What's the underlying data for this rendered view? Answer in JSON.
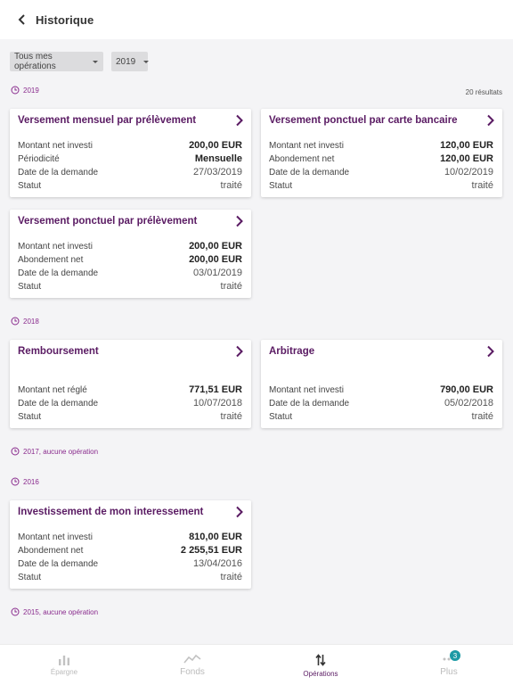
{
  "header": {
    "title": "Historique"
  },
  "filters": {
    "operations": "Tous mes opérations",
    "year": "2019"
  },
  "results_count": "20 résultats",
  "groups": [
    {
      "label": "2019"
    },
    {
      "label": "2018"
    },
    {
      "label": "2017, aucune opération"
    },
    {
      "label": "2016"
    },
    {
      "label": "2015, aucune opération"
    }
  ],
  "cards": [
    {
      "title": "Versement mensuel par prélèvement",
      "rows": [
        {
          "label": "Montant net investi",
          "value": "200,00 EUR"
        },
        {
          "label": "Périodicité",
          "value": "Mensuelle"
        },
        {
          "label": "Date de la demande",
          "value": "27/03/2019"
        },
        {
          "label": "Statut",
          "value": "traité"
        }
      ]
    },
    {
      "title": "Versement ponctuel par carte bancaire",
      "rows": [
        {
          "label": "Montant net investi",
          "value": "120,00 EUR"
        },
        {
          "label": "Abondement net",
          "value": "120,00 EUR"
        },
        {
          "label": "Date de la demande",
          "value": "10/02/2019"
        },
        {
          "label": "Statut",
          "value": "traité"
        }
      ]
    },
    {
      "title": "Versement ponctuel par prélèvement",
      "rows": [
        {
          "label": "Montant net investi",
          "value": "200,00 EUR"
        },
        {
          "label": "Abondement net",
          "value": "200,00 EUR"
        },
        {
          "label": "Date de la demande",
          "value": "03/01/2019"
        },
        {
          "label": "Statut",
          "value": "traité"
        }
      ]
    },
    {
      "title": "Remboursement",
      "rows": [
        {
          "label": "Montant net réglé",
          "value": "771,51 EUR"
        },
        {
          "label": "Date de la demande",
          "value": "10/07/2018"
        },
        {
          "label": "Statut",
          "value": "traité"
        }
      ]
    },
    {
      "title": "Arbitrage",
      "rows": [
        {
          "label": "Montant net investi",
          "value": "790,00 EUR"
        },
        {
          "label": "Date de la demande",
          "value": "05/02/2018"
        },
        {
          "label": "Statut",
          "value": "traité"
        }
      ]
    },
    {
      "title": "Investissement de mon interessement",
      "rows": [
        {
          "label": "Montant net investi",
          "value": "810,00 EUR"
        },
        {
          "label": "Abondement net",
          "value": "2 255,51 EUR"
        },
        {
          "label": "Date de la demande",
          "value": "13/04/2016"
        },
        {
          "label": "Statut",
          "value": "traité"
        }
      ]
    }
  ],
  "nav": {
    "items": [
      {
        "label": "Épargne",
        "icon": "bar-chart-icon"
      },
      {
        "label": "Fonds",
        "icon": "trend-line-icon"
      },
      {
        "label": "Opérations",
        "icon": "swap-arrows-icon"
      },
      {
        "label": "Plus",
        "icon": "more-dots-icon",
        "badge": "3"
      }
    ]
  },
  "colors": {
    "accent": "#5a1b63",
    "year": "#8a2c8e",
    "badge": "#1c9aa5"
  }
}
